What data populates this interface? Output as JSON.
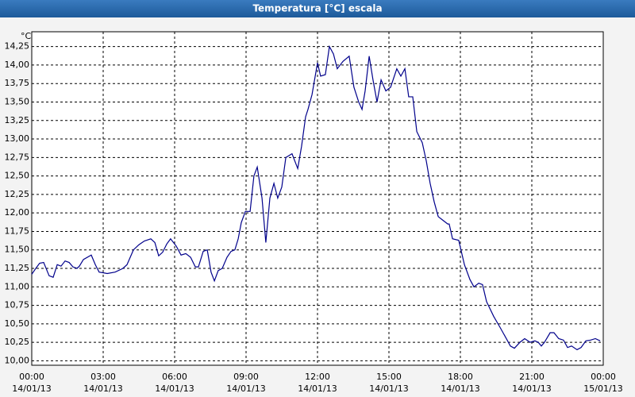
{
  "chart_data": {
    "type": "line",
    "title": "Temperatura [°C] escala",
    "y_unit": "°C",
    "x": [
      0,
      0.17,
      0.33,
      0.5,
      0.73,
      0.9,
      1.07,
      1.23,
      1.4,
      1.57,
      1.73,
      1.9,
      2,
      2.17,
      2.5,
      2.67,
      2.83,
      3.17,
      3.5,
      3.83,
      4,
      4.27,
      4.5,
      4.73,
      5,
      5.17,
      5.33,
      5.5,
      5.67,
      5.83,
      6.07,
      6.27,
      6.47,
      6.67,
      6.87,
      7,
      7.2,
      7.37,
      7.53,
      7.67,
      7.83,
      8,
      8.2,
      8.37,
      8.53,
      8.67,
      8.8,
      8.97,
      9.17,
      9.33,
      9.47,
      9.67,
      9.83,
      10,
      10.17,
      10.33,
      10.5,
      10.67,
      10.93,
      11.17,
      11.33,
      11.5,
      11.6,
      11.77,
      12,
      12.13,
      12.33,
      12.5,
      12.67,
      12.83,
      13.07,
      13.33,
      13.53,
      13.73,
      13.87,
      14,
      14.17,
      14.33,
      14.5,
      14.67,
      14.87,
      15.07,
      15.33,
      15.5,
      15.67,
      15.83,
      16,
      16.17,
      16.4,
      16.57,
      16.73,
      16.9,
      17.07,
      17.27,
      17.47,
      17.53,
      17.67,
      17.93,
      18.17,
      18.4,
      18.57,
      18.77,
      18.93,
      19.1,
      19.4,
      19.67,
      19.93,
      20.1,
      20.27,
      20.5,
      20.7,
      20.93,
      21.13,
      21.27,
      21.4,
      21.53,
      21.77,
      21.93,
      22.13,
      22.33,
      22.5,
      22.67,
      22.9,
      23.07,
      23.27,
      23.47,
      23.67,
      23.87
    ],
    "series": [
      {
        "name": "Temperatura",
        "color": "#00008b",
        "values": [
          11.17,
          11.25,
          11.32,
          11.33,
          11.15,
          11.13,
          11.3,
          11.28,
          11.35,
          11.33,
          11.27,
          11.25,
          11.28,
          11.37,
          11.43,
          11.3,
          11.2,
          11.18,
          11.2,
          11.25,
          11.3,
          11.5,
          11.57,
          11.62,
          11.65,
          11.6,
          11.42,
          11.47,
          11.58,
          11.65,
          11.55,
          11.43,
          11.45,
          11.4,
          11.27,
          11.27,
          11.48,
          11.5,
          11.2,
          11.08,
          11.22,
          11.25,
          11.4,
          11.48,
          11.5,
          11.65,
          11.87,
          12.02,
          12.02,
          12.5,
          12.62,
          12.2,
          11.6,
          12.2,
          12.4,
          12.2,
          12.35,
          12.75,
          12.8,
          12.6,
          12.9,
          13.3,
          13.4,
          13.6,
          14.03,
          13.85,
          13.87,
          14.25,
          14.15,
          13.95,
          14.05,
          14.12,
          13.7,
          13.5,
          13.4,
          13.65,
          14.12,
          13.8,
          13.5,
          13.8,
          13.65,
          13.7,
          13.95,
          13.85,
          13.95,
          13.57,
          13.57,
          13.1,
          12.95,
          12.7,
          12.4,
          12.15,
          11.95,
          11.9,
          11.85,
          11.85,
          11.65,
          11.63,
          11.3,
          11.1,
          11.0,
          11.05,
          11.03,
          10.8,
          10.6,
          10.45,
          10.3,
          10.2,
          10.17,
          10.25,
          10.3,
          10.25,
          10.27,
          10.25,
          10.2,
          10.25,
          10.38,
          10.38,
          10.3,
          10.28,
          10.18,
          10.2,
          10.15,
          10.18,
          10.27,
          10.28,
          10.3,
          10.27
        ]
      }
    ],
    "xlim": [
      0,
      24
    ],
    "ylim": [
      9.94,
      14.45
    ],
    "xticks": [
      {
        "value": 0,
        "label": "00:00"
      },
      {
        "value": 3,
        "label": "03:00"
      },
      {
        "value": 6,
        "label": "06:00"
      },
      {
        "value": 9,
        "label": "09:00"
      },
      {
        "value": 12,
        "label": "12:00"
      },
      {
        "value": 15,
        "label": "15:00"
      },
      {
        "value": 18,
        "label": "18:00"
      },
      {
        "value": 21,
        "label": "21:00"
      },
      {
        "value": 24,
        "label": "00:00"
      }
    ],
    "xtick_dates": [
      "14/01/13",
      "14/01/13",
      "14/01/13",
      "14/01/13",
      "14/01/13",
      "14/01/13",
      "14/01/13",
      "14/01/13",
      "15/01/13"
    ],
    "yticks": [
      {
        "value": 10,
        "label": "10,00"
      },
      {
        "value": 10.25,
        "label": "10,25"
      },
      {
        "value": 10.5,
        "label": "10,50"
      },
      {
        "value": 10.75,
        "label": "10,75"
      },
      {
        "value": 11,
        "label": "11,00"
      },
      {
        "value": 11.25,
        "label": "11,25"
      },
      {
        "value": 11.5,
        "label": "11,50"
      },
      {
        "value": 11.75,
        "label": "11,75"
      },
      {
        "value": 12,
        "label": "12,00"
      },
      {
        "value": 12.25,
        "label": "12,25"
      },
      {
        "value": 12.5,
        "label": "12,50"
      },
      {
        "value": 12.75,
        "label": "12,75"
      },
      {
        "value": 13,
        "label": "13,00"
      },
      {
        "value": 13.25,
        "label": "13,25"
      },
      {
        "value": 13.5,
        "label": "13,50"
      },
      {
        "value": 13.75,
        "label": "13,75"
      },
      {
        "value": 14,
        "label": "14,00"
      },
      {
        "value": 14.25,
        "label": "14,25"
      }
    ],
    "grid": true
  }
}
